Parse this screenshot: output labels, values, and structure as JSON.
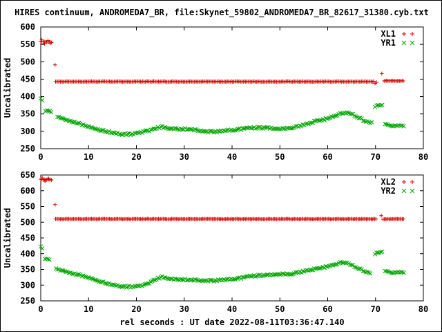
{
  "title": "HIRES continuum, ANDROMEDA7_BR, file:Skynet_59802_ANDROMEDA7_BR_82617_31380.cyb.txt",
  "xlabel": "rel seconds : UT date 2022-08-11T03:36:47.140",
  "colors": {
    "red": "#d80000",
    "green": "#00a800",
    "axis": "#000000",
    "background": "#ffffff"
  },
  "chart_data": [
    {
      "name": "top-plot",
      "type": "scatter",
      "ylabel": "Uncalibrated",
      "xlim": [
        0,
        80
      ],
      "ylim": [
        250,
        600
      ],
      "xticks": [
        0,
        10,
        20,
        30,
        40,
        50,
        60,
        70,
        80
      ],
      "yticks": [
        250,
        300,
        350,
        400,
        450,
        500,
        550,
        600
      ],
      "grid": false,
      "legend_position": "top-right",
      "legend": [
        {
          "label": "XL1",
          "color": "red",
          "marker": "plus"
        },
        {
          "label": "YR1",
          "color": "green",
          "marker": "cross"
        }
      ],
      "series": [
        {
          "name": "XL1",
          "color": "red",
          "marker": "plus",
          "step": 0.25,
          "jitter": 0.8,
          "runs": [
            [
              [
                0,
                558
              ],
              [
                2.4,
                556
              ]
            ],
            [
              [
                3.1,
                443
              ],
              [
                69.7,
                443
              ]
            ],
            [
              [
                71.8,
                445
              ],
              [
                76,
                445
              ]
            ]
          ],
          "points": [
            [
              0.2,
              563
            ],
            [
              0.8,
              552
            ],
            [
              1.5,
              561
            ],
            [
              2.0,
              553
            ],
            [
              3.0,
              491
            ],
            [
              69.9,
              438
            ],
            [
              70.2,
              441
            ],
            [
              71.3,
              466
            ]
          ]
        },
        {
          "name": "YR1",
          "color": "green",
          "marker": "cross",
          "step": 0.3,
          "jitter": 2.5,
          "runs": [
            [
              [
                0,
                393
              ],
              [
                0.5,
                389
              ]
            ],
            [
              [
                1.0,
                360
              ],
              [
                2.2,
                355
              ]
            ],
            [
              [
                3.5,
                342
              ],
              [
                5,
                334
              ],
              [
                7,
                327
              ],
              [
                9,
                318
              ],
              [
                11,
                309
              ],
              [
                13,
                302
              ],
              [
                15,
                296
              ],
              [
                17,
                292
              ],
              [
                19,
                292
              ],
              [
                21,
                297
              ],
              [
                23,
                303
              ],
              [
                24.5,
                311
              ],
              [
                25.5,
                313
              ],
              [
                27,
                308
              ],
              [
                29,
                306
              ],
              [
                31,
                307
              ],
              [
                33,
                303
              ],
              [
                35,
                299
              ],
              [
                37,
                299
              ],
              [
                39,
                302
              ],
              [
                41,
                305
              ],
              [
                43,
                308
              ],
              [
                45,
                310
              ],
              [
                47,
                311
              ],
              [
                49,
                308
              ],
              [
                51,
                308
              ],
              [
                53,
                312
              ],
              [
                55,
                319
              ],
              [
                57,
                327
              ],
              [
                59,
                333
              ],
              [
                61,
                342
              ],
              [
                62.5,
                350
              ],
              [
                63.5,
                354
              ],
              [
                64.5,
                352
              ],
              [
                65.5,
                346
              ],
              [
                66.5,
                339
              ],
              [
                67.5,
                332
              ],
              [
                68.5,
                327
              ],
              [
                69.3,
                324
              ]
            ],
            [
              [
                69.9,
                371
              ],
              [
                70.4,
                377
              ],
              [
                70.9,
                372
              ],
              [
                71.5,
                379
              ]
            ],
            [
              [
                72,
                319
              ],
              [
                73,
                316
              ],
              [
                74.5,
                315
              ],
              [
                76,
                317
              ]
            ]
          ],
          "points": []
        }
      ]
    },
    {
      "name": "bottom-plot",
      "type": "scatter",
      "ylabel": "Uncalibrated",
      "xlim": [
        0,
        80
      ],
      "ylim": [
        250,
        650
      ],
      "xticks": [
        0,
        10,
        20,
        30,
        40,
        50,
        60,
        70,
        80
      ],
      "yticks": [
        250,
        300,
        350,
        400,
        450,
        500,
        550,
        600,
        650
      ],
      "grid": false,
      "legend_position": "top-right",
      "legend": [
        {
          "label": "XL2",
          "color": "red",
          "marker": "plus"
        },
        {
          "label": "YR2",
          "color": "green",
          "marker": "cross"
        }
      ],
      "series": [
        {
          "name": "XL2",
          "color": "red",
          "marker": "plus",
          "step": 0.25,
          "jitter": 0.8,
          "runs": [
            [
              [
                0,
                636
              ],
              [
                2.4,
                635
              ]
            ],
            [
              [
                3.1,
                510
              ],
              [
                70.2,
                510
              ]
            ],
            [
              [
                71.6,
                510
              ],
              [
                76,
                510
              ]
            ]
          ],
          "points": [
            [
              0.3,
              641
            ],
            [
              0.9,
              630
            ],
            [
              1.6,
              639
            ],
            [
              3.0,
              556
            ],
            [
              71.2,
              521
            ]
          ]
        },
        {
          "name": "YR2",
          "color": "green",
          "marker": "cross",
          "step": 0.3,
          "jitter": 2.5,
          "runs": [
            [
              [
                0,
                421
              ],
              [
                0.5,
                416
              ]
            ],
            [
              [
                0.9,
                383
              ],
              [
                2.0,
                379
              ]
            ],
            [
              [
                3.2,
                352
              ],
              [
                4.5,
                346
              ],
              [
                6,
                340
              ],
              [
                8,
                333
              ],
              [
                10,
                324
              ],
              [
                12,
                314
              ],
              [
                14,
                305
              ],
              [
                16,
                298
              ],
              [
                18,
                295
              ],
              [
                20,
                296
              ],
              [
                22,
                301
              ],
              [
                23.5,
                314
              ],
              [
                24.5,
                322
              ],
              [
                25.5,
                326
              ],
              [
                26.5,
                322
              ],
              [
                28,
                318
              ],
              [
                30,
                318
              ],
              [
                32,
                317
              ],
              [
                34,
                315
              ],
              [
                36,
                314
              ],
              [
                38,
                316
              ],
              [
                40,
                319
              ],
              [
                42,
                323
              ],
              [
                44,
                328
              ],
              [
                46,
                331
              ],
              [
                48,
                333
              ],
              [
                50,
                336
              ],
              [
                52,
                335
              ],
              [
                54,
                341
              ],
              [
                56,
                348
              ],
              [
                58,
                352
              ],
              [
                60,
                360
              ],
              [
                62,
                368
              ],
              [
                63,
                373
              ],
              [
                64,
                371
              ],
              [
                65,
                363
              ],
              [
                66,
                356
              ],
              [
                67,
                349
              ],
              [
                68,
                343
              ],
              [
                69,
                339
              ]
            ],
            [
              [
                69.9,
                399
              ],
              [
                70.3,
                406
              ],
              [
                70.8,
                401
              ],
              [
                71.4,
                409
              ]
            ],
            [
              [
                72,
                343
              ],
              [
                73.5,
                339
              ],
              [
                75,
                340
              ],
              [
                76,
                342
              ]
            ]
          ],
          "points": []
        }
      ]
    }
  ]
}
